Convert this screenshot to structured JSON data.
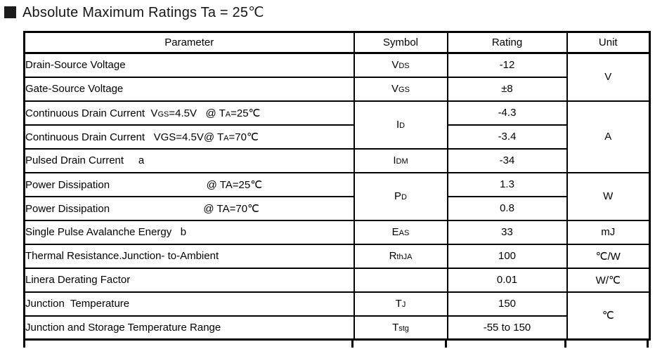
{
  "title": {
    "text": "Absolute Maximum Ratings Ta = 25℃"
  },
  "colors": {
    "background": "#ffffff",
    "text": "#000000",
    "border": "#000000",
    "section_marker": "#1c1c1c"
  },
  "table": {
    "headers": [
      "Parameter",
      "Symbol",
      "Rating",
      "Unit"
    ],
    "rows": [
      {
        "parameter": [
          {
            "t": "Drain-Source Voltage"
          }
        ],
        "symbol": [
          {
            "t": "V"
          },
          {
            "t": "DS",
            "sub": true
          }
        ],
        "rating": "-12",
        "unit": "V"
      },
      {
        "parameter": [
          {
            "t": "Gate-Source Voltage"
          }
        ],
        "symbol": [
          {
            "t": "V"
          },
          {
            "t": "GS",
            "sub": true
          }
        ],
        "rating": "±8"
      },
      {
        "parameter": [
          {
            "t": "Continuous Drain Current  V"
          },
          {
            "t": "GS",
            "sub": true
          },
          {
            "t": "=4.5V   @ T"
          },
          {
            "t": "A",
            "sub": true
          },
          {
            "t": "=25℃"
          }
        ],
        "symbol": [
          {
            "t": "I"
          },
          {
            "t": "D",
            "sub": true
          }
        ],
        "rating": "-4.3",
        "unit": "A"
      },
      {
        "parameter": [
          {
            "t": "Continuous Drain Current   VGS=4.5V@ T"
          },
          {
            "t": "A",
            "sub": true
          },
          {
            "t": "=70℃"
          }
        ],
        "rating": "-3.4"
      },
      {
        "parameter": [
          {
            "t": "Pulsed Drain Current     a"
          }
        ],
        "symbol": [
          {
            "t": "I"
          },
          {
            "t": "DM",
            "sub": true
          }
        ],
        "rating": "-34"
      },
      {
        "parameter": [
          {
            "t": "Power Dissipation                                 @ TA=25℃"
          }
        ],
        "symbol": [
          {
            "t": "P"
          },
          {
            "t": "D",
            "sub": true
          }
        ],
        "rating": "1.3",
        "unit": "W"
      },
      {
        "parameter": [
          {
            "t": "Power Dissipation                                @ TA=70℃"
          }
        ],
        "rating": "0.8"
      },
      {
        "parameter": [
          {
            "t": "Single Pulse Avalanche Energy   b"
          }
        ],
        "symbol": [
          {
            "t": "E"
          },
          {
            "t": "AS",
            "sub": true
          }
        ],
        "rating": "33",
        "unit": "mJ"
      },
      {
        "parameter": [
          {
            "t": "Thermal Resistance.Junction- to-Ambient"
          }
        ],
        "symbol": [
          {
            "t": "R"
          },
          {
            "t": "thJA",
            "sub": true
          }
        ],
        "rating": "100",
        "unit": "℃/W"
      },
      {
        "parameter": [
          {
            "t": "Linera Derating Factor"
          }
        ],
        "symbol": [],
        "rating": "0.01",
        "unit": "W/℃"
      },
      {
        "parameter": [
          {
            "t": "Junction  Temperature"
          }
        ],
        "symbol": [
          {
            "t": "T"
          },
          {
            "t": "J",
            "sub": true
          }
        ],
        "rating": "150",
        "unit": "℃"
      },
      {
        "parameter": [
          {
            "t": "Junction and Storage Temperature Range"
          }
        ],
        "symbol": [
          {
            "t": "T"
          },
          {
            "t": "stg",
            "sub": true
          }
        ],
        "rating": "-55 to 150"
      }
    ]
  }
}
